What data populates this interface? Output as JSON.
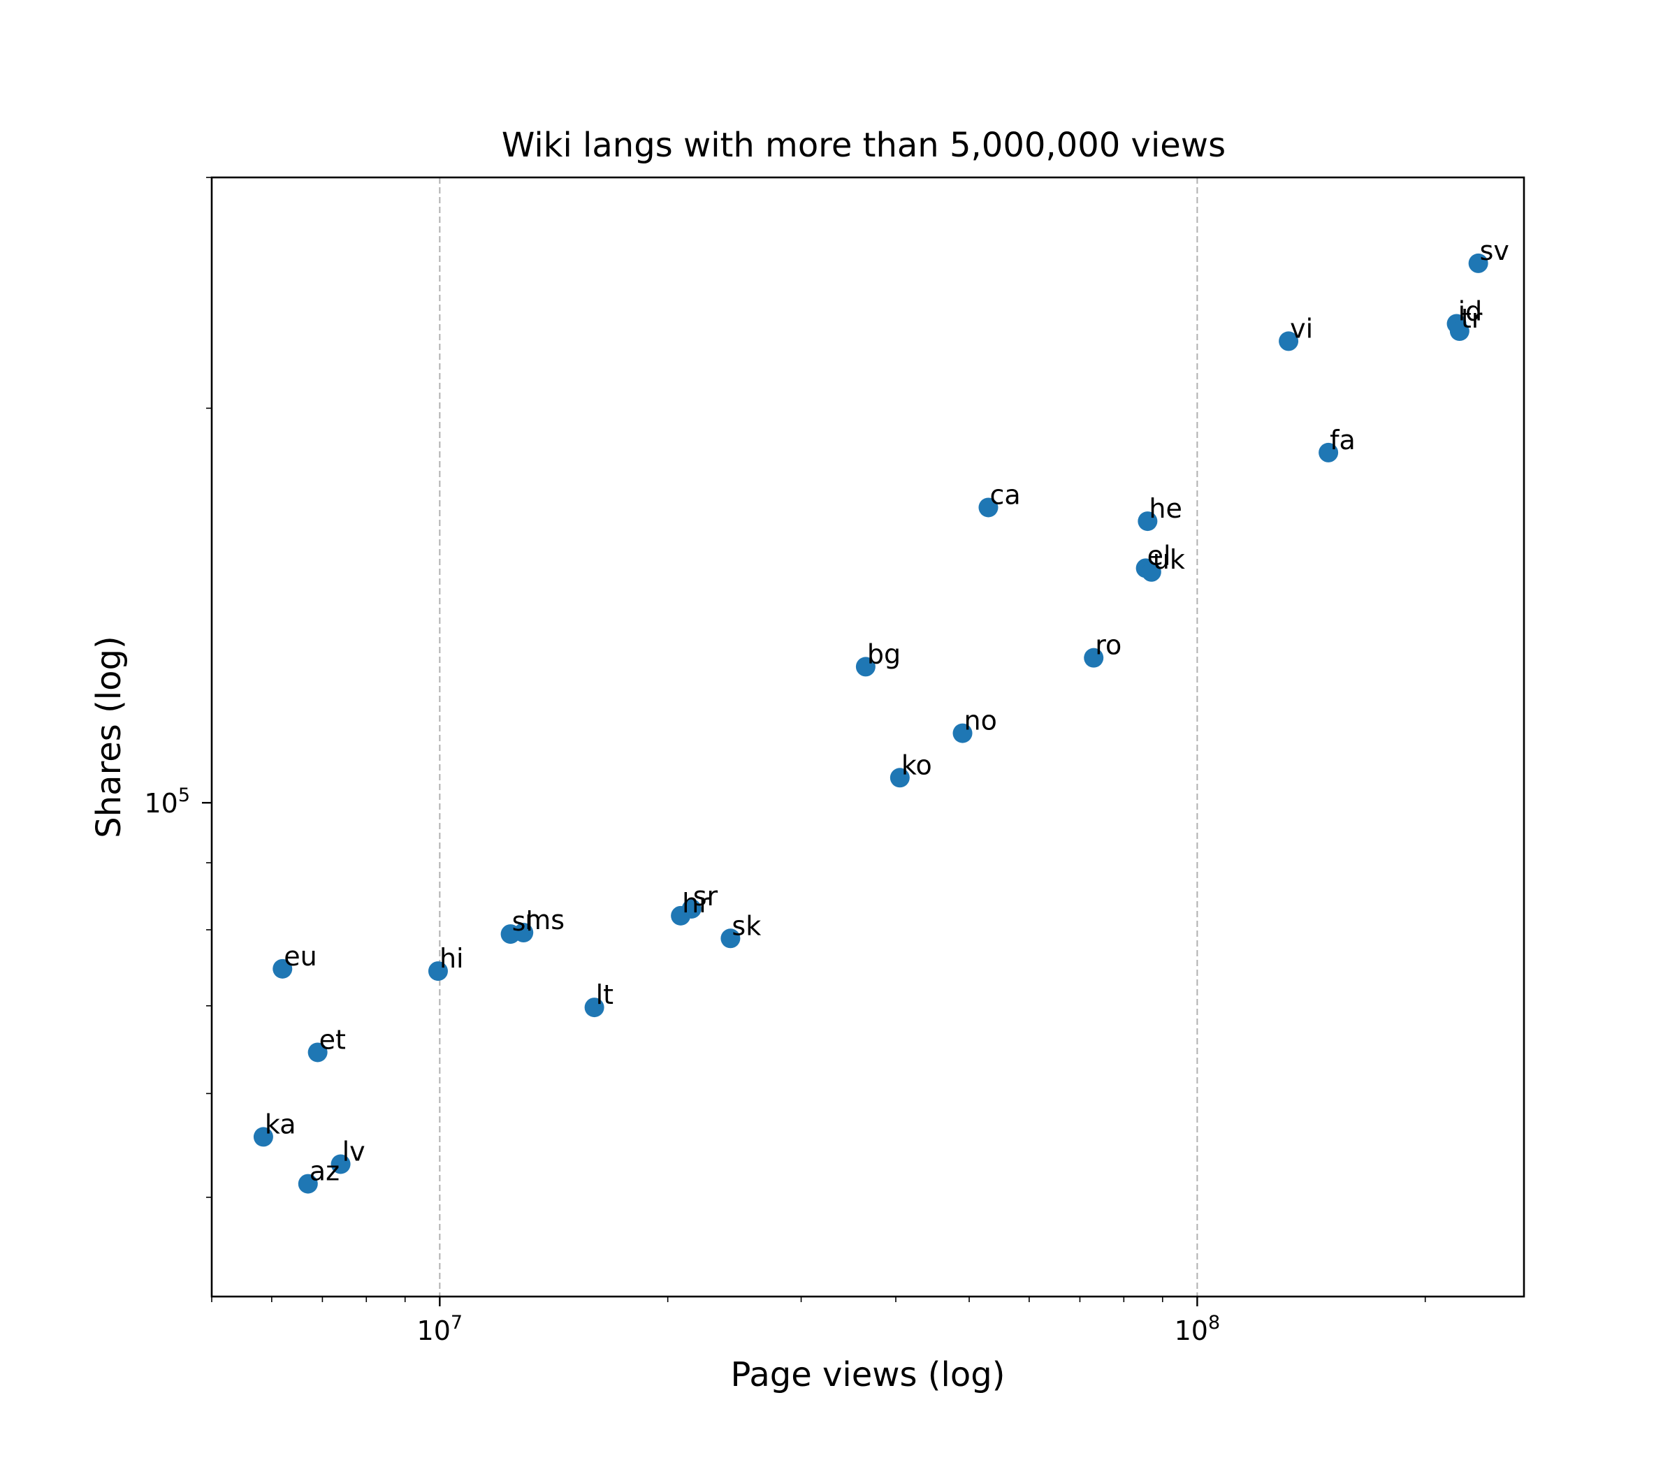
{
  "chart_data": {
    "type": "scatter",
    "title": "Wiki langs with more than 5,000,000 views",
    "xlabel": "Page views (log)",
    "ylabel": "Shares (log)",
    "xscale": "log",
    "yscale": "log",
    "xlim": [
      5000000,
      270000000
    ],
    "ylim": [
      42000,
      300000
    ],
    "x_ticks": [
      {
        "base": "10",
        "exp": "7",
        "value": 10000000
      },
      {
        "base": "10",
        "exp": "8",
        "value": 100000000
      }
    ],
    "y_ticks": [
      {
        "base": "10",
        "exp": "5",
        "value": 100000
      }
    ],
    "x_gridlines": [
      10000000,
      100000000
    ],
    "grid": "vertical dashed at major x ticks",
    "point_color": "#1f77b4",
    "points": [
      {
        "label": "sv",
        "x": 235000000,
        "y": 258000
      },
      {
        "label": "id",
        "x": 220000000,
        "y": 232000
      },
      {
        "label": "tr",
        "x": 222000000,
        "y": 229000
      },
      {
        "label": "vi",
        "x": 132000000,
        "y": 225000
      },
      {
        "label": "fa",
        "x": 149000000,
        "y": 185000
      },
      {
        "label": "ca",
        "x": 53000000,
        "y": 168000
      },
      {
        "label": "he",
        "x": 86000000,
        "y": 164000
      },
      {
        "label": "el",
        "x": 85500000,
        "y": 151000
      },
      {
        "label": "uk",
        "x": 87000000,
        "y": 150000
      },
      {
        "label": "ro",
        "x": 73000000,
        "y": 129000
      },
      {
        "label": "bg",
        "x": 36500000,
        "y": 127000
      },
      {
        "label": "no",
        "x": 49000000,
        "y": 113000
      },
      {
        "label": "ko",
        "x": 40500000,
        "y": 104500
      },
      {
        "label": "sr",
        "x": 21500000,
        "y": 83000
      },
      {
        "label": "hr",
        "x": 20800000,
        "y": 82000
      },
      {
        "label": "sk",
        "x": 24200000,
        "y": 78800
      },
      {
        "label": "sl",
        "x": 12400000,
        "y": 79400
      },
      {
        "label": "ms",
        "x": 12900000,
        "y": 79600
      },
      {
        "label": "eu",
        "x": 6200000,
        "y": 74700
      },
      {
        "label": "hi",
        "x": 9950000,
        "y": 74400
      },
      {
        "label": "lt",
        "x": 16000000,
        "y": 69800
      },
      {
        "label": "et",
        "x": 6900000,
        "y": 64500
      },
      {
        "label": "ka",
        "x": 5850000,
        "y": 55600
      },
      {
        "label": "lv",
        "x": 7400000,
        "y": 53000
      },
      {
        "label": "az",
        "x": 6700000,
        "y": 51200
      }
    ]
  }
}
